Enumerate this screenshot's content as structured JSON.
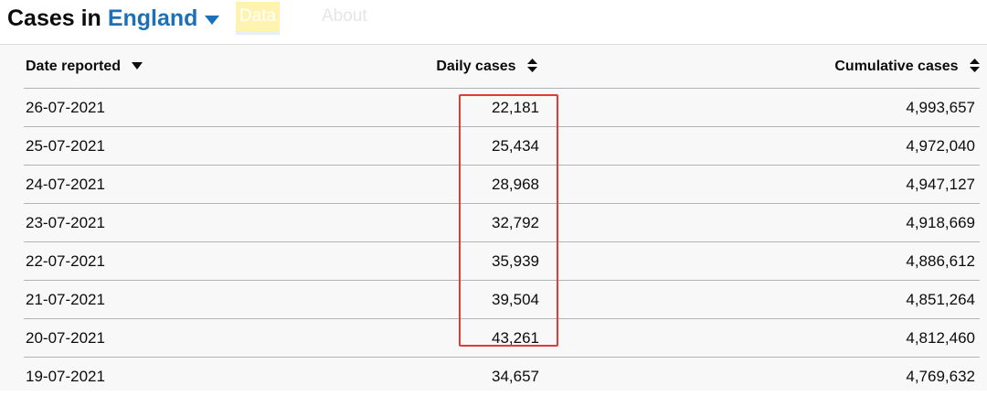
{
  "header": {
    "title_prefix": "Cases in",
    "area": "England",
    "tabs": [
      {
        "label": "Data"
      },
      {
        "label": "About"
      }
    ]
  },
  "table": {
    "columns": [
      {
        "label": "Date reported"
      },
      {
        "label": "Daily cases"
      },
      {
        "label": "Cumulative cases"
      }
    ],
    "rows": [
      {
        "date": "26-07-2021",
        "daily": "22,181",
        "cumulative": "4,993,657"
      },
      {
        "date": "25-07-2021",
        "daily": "25,434",
        "cumulative": "4,972,040"
      },
      {
        "date": "24-07-2021",
        "daily": "28,968",
        "cumulative": "4,947,127"
      },
      {
        "date": "23-07-2021",
        "daily": "32,792",
        "cumulative": "4,918,669"
      },
      {
        "date": "22-07-2021",
        "daily": "35,939",
        "cumulative": "4,886,612"
      },
      {
        "date": "21-07-2021",
        "daily": "39,504",
        "cumulative": "4,851,264"
      },
      {
        "date": "20-07-2021",
        "daily": "43,261",
        "cumulative": "4,812,460"
      },
      {
        "date": "19-07-2021",
        "daily": "34,657",
        "cumulative": "4,769,632"
      }
    ]
  },
  "colors": {
    "area_link": "#1d70b8",
    "highlight": "#e53935",
    "text": "#0b0c0c",
    "panel": "#f8f8f8"
  },
  "icons": {
    "area_dropdown": "caret-down-icon",
    "sorted_desc": "sort-desc-icon",
    "sortable": "sort-both-icon"
  }
}
